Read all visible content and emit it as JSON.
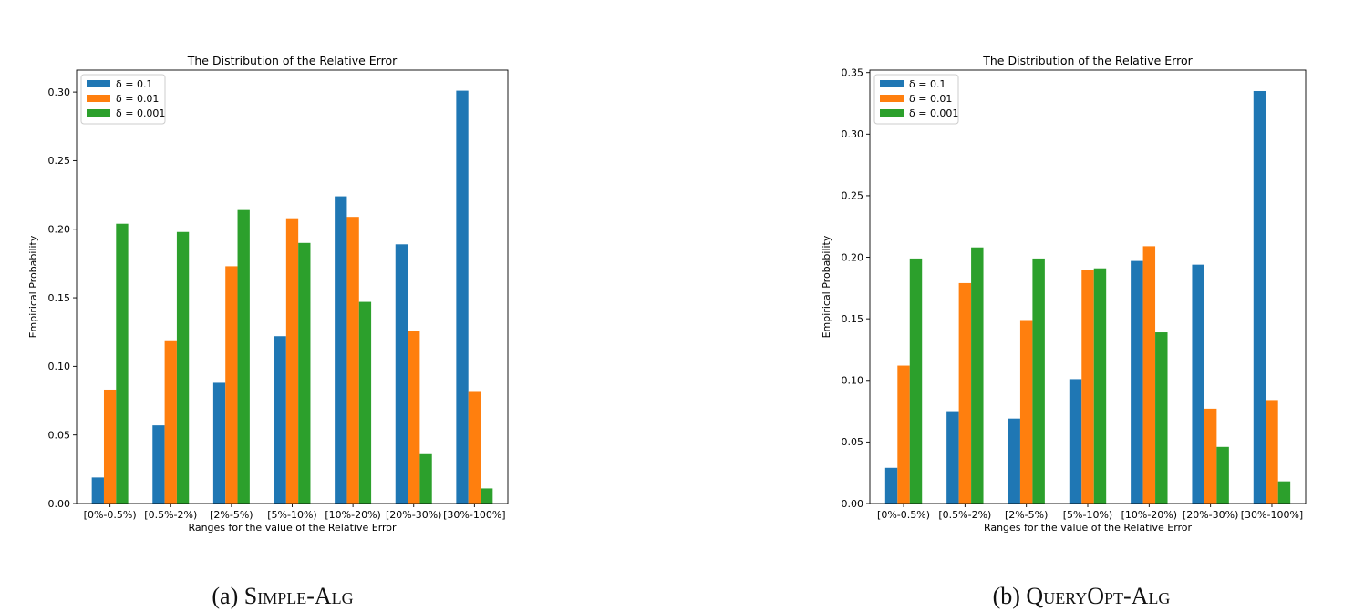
{
  "colors": {
    "series": [
      "#1f77b4",
      "#ff7f0e",
      "#2ca02c"
    ],
    "axis": "#000000"
  },
  "captions": [
    {
      "prefix": "(a) ",
      "name": "Simple-Alg"
    },
    {
      "prefix": "(b) ",
      "name": "QueryOpt-Alg"
    }
  ],
  "chart_data": [
    {
      "type": "bar",
      "title": "The Distribution of the Relative Error",
      "xlabel": "Ranges for the value of the Relative Error",
      "ylabel": "Empirical Probability",
      "categories": [
        "[0%-0.5%)",
        "[0.5%-2%)",
        "[2%-5%)",
        "[5%-10%)",
        "[10%-20%)",
        "[20%-30%)",
        "[30%-100%]"
      ],
      "series": [
        {
          "name": "δ = 0.1",
          "values": [
            0.019,
            0.057,
            0.088,
            0.122,
            0.224,
            0.189,
            0.301
          ]
        },
        {
          "name": "δ = 0.01",
          "values": [
            0.083,
            0.119,
            0.173,
            0.208,
            0.209,
            0.126,
            0.082
          ]
        },
        {
          "name": "δ = 0.001",
          "values": [
            0.204,
            0.198,
            0.214,
            0.19,
            0.147,
            0.036,
            0.011
          ]
        }
      ],
      "yticks": [
        "0.00",
        "0.05",
        "0.10",
        "0.15",
        "0.20",
        "0.25",
        "0.30"
      ],
      "ylim": [
        0,
        0.316
      ],
      "legend": "top-left"
    },
    {
      "type": "bar",
      "title": "The Distribution of the Relative Error",
      "xlabel": "Ranges for the value of the Relative Error",
      "ylabel": "Empirical Probability",
      "categories": [
        "[0%-0.5%)",
        "[0.5%-2%)",
        "[2%-5%)",
        "[5%-10%)",
        "[10%-20%)",
        "[20%-30%)",
        "[30%-100%]"
      ],
      "series": [
        {
          "name": "δ = 0.1",
          "values": [
            0.029,
            0.075,
            0.069,
            0.101,
            0.197,
            0.194,
            0.335
          ]
        },
        {
          "name": "δ = 0.01",
          "values": [
            0.112,
            0.179,
            0.149,
            0.19,
            0.209,
            0.077,
            0.084
          ]
        },
        {
          "name": "δ = 0.001",
          "values": [
            0.199,
            0.208,
            0.199,
            0.191,
            0.139,
            0.046,
            0.018
          ]
        }
      ],
      "yticks": [
        "0.00",
        "0.05",
        "0.10",
        "0.15",
        "0.20",
        "0.25",
        "0.30",
        "0.35"
      ],
      "ylim": [
        0,
        0.352
      ],
      "legend": "top-left"
    }
  ]
}
